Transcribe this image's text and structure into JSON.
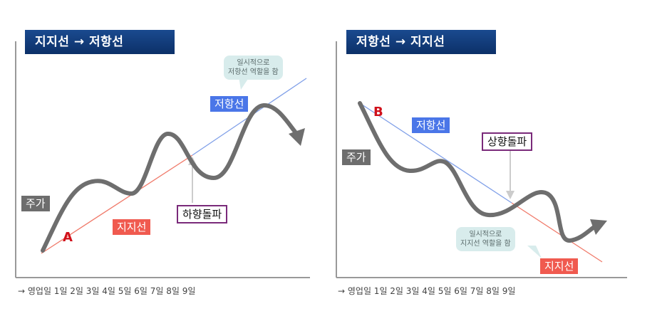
{
  "left": {
    "title": "지지선 → 저항선",
    "stock_label": "주가",
    "resistance_label": "저항선",
    "support_label": "지지선",
    "breakout_label": "하향돌파",
    "point_label": "A",
    "bubble_line1": "일시적으로",
    "bubble_line2": "저항선 역할을 함",
    "x_axis": "→ 영업일  1일   2일   3일   4일   5일   6일   7일   8일   9일"
  },
  "right": {
    "title": "저항선 → 지지선",
    "stock_label": "주가",
    "resistance_label": "저항선",
    "support_label": "지지선",
    "breakout_label": "상향돌파",
    "point_label": "B",
    "bubble_line1": "일시적으로",
    "bubble_line2": "지지선 역할을 함",
    "x_axis": "→ 영업일  1일   2일   3일   4일   5일   6일   7일   8일   9일"
  },
  "colors": {
    "stock": "#6e6e6e",
    "resistance": "#4a76e8",
    "support": "#f05a4f",
    "point": "#d0101a"
  }
}
